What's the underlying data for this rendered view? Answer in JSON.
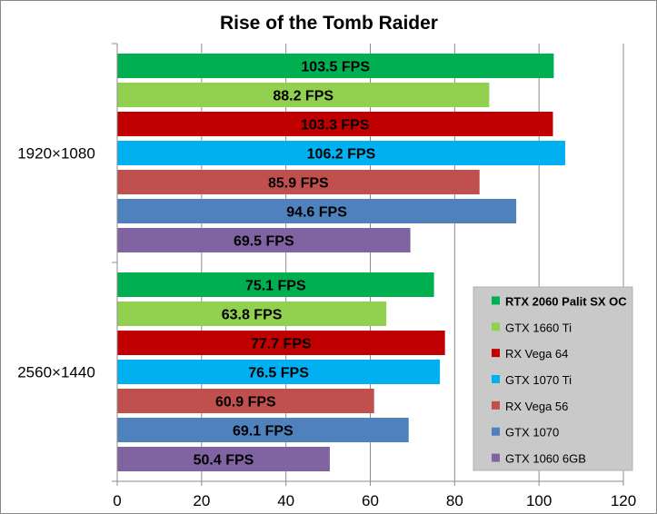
{
  "chart_data": {
    "type": "bar",
    "orientation": "horizontal",
    "title": "Rise of the Tomb Raider",
    "xlabel": "",
    "ylabel": "",
    "xlim": [
      0,
      120
    ],
    "xticks": [
      0,
      20,
      40,
      60,
      80,
      100,
      120
    ],
    "grid": true,
    "legend_position": "bottom-right",
    "value_suffix": " FPS",
    "categories": [
      "1920×1080",
      "2560×1440"
    ],
    "series": [
      {
        "name": "RTX 2060 Palit SX OC",
        "color": "#00b050",
        "values": [
          103.5,
          75.1
        ],
        "bold_legend": true
      },
      {
        "name": "GTX 1660 Ti",
        "color": "#92d050",
        "values": [
          88.2,
          63.8
        ]
      },
      {
        "name": "RX Vega 64",
        "color": "#c00000",
        "values": [
          103.3,
          77.7
        ]
      },
      {
        "name": "GTX 1070 Ti",
        "color": "#00b0f0",
        "values": [
          106.2,
          76.5
        ]
      },
      {
        "name": "RX Vega 56",
        "color": "#c0504d",
        "values": [
          85.9,
          60.9
        ]
      },
      {
        "name": "GTX 1070",
        "color": "#4f81bd",
        "values": [
          94.6,
          69.1
        ]
      },
      {
        "name": "GTX 1060 6GB",
        "color": "#8064a2",
        "values": [
          69.5,
          50.4
        ]
      }
    ]
  }
}
